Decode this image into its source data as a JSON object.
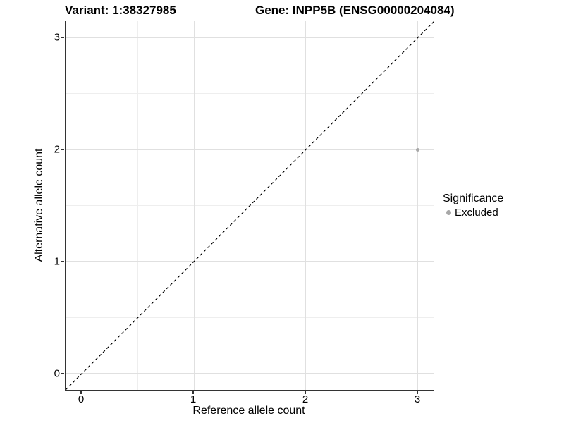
{
  "chart_data": {
    "type": "scatter",
    "titles": {
      "left": "Variant: 1:38327985",
      "right": "Gene: INPP5B (ENSG00000204084)"
    },
    "xlabel": "Reference allele count",
    "ylabel": "Alternative allele count",
    "xlim": [
      -0.1447,
      3.1447
    ],
    "ylim": [
      -0.1447,
      3.1447
    ],
    "xticks": [
      0,
      1,
      2,
      3
    ],
    "yticks": [
      0,
      1,
      2,
      3
    ],
    "xminor": [
      0.5,
      1.5,
      2.5
    ],
    "yminor": [
      0.5,
      1.5,
      2.5
    ],
    "grid": true,
    "identity_line": {
      "show": true,
      "style": "dashed",
      "color": "#000000"
    },
    "series": [
      {
        "name": "Excluded",
        "color": "#a8a8a8",
        "marker": "circle",
        "points": [
          {
            "x": 3,
            "y": 2
          }
        ]
      }
    ],
    "legend": {
      "title": "Significance",
      "position": "right",
      "entries": [
        {
          "label": "Excluded",
          "color": "#a8a8a8"
        }
      ]
    }
  },
  "colors": {
    "background": "#ffffff",
    "axis_line": "#333333",
    "grid_major": "#e0e0e0",
    "grid_minor": "#eeeeee",
    "point": "#a8a8a8",
    "text": "#000000"
  }
}
